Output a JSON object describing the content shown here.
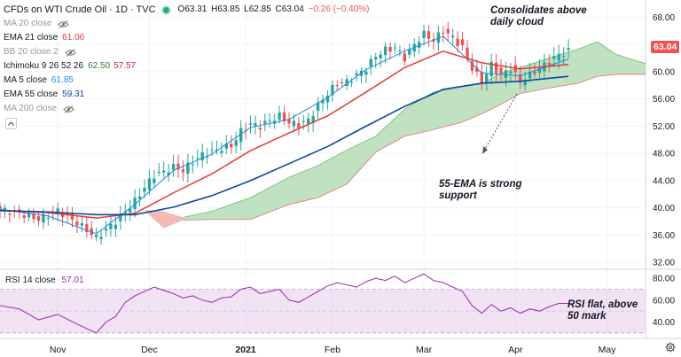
{
  "header": {
    "title": "CFDs on WTI Crude Oil · 1D · TVC",
    "ohlc": {
      "o": "O63.31",
      "h": "H63.85",
      "l": "L62.85",
      "c": "C63.04",
      "chg": "−0.26 (−0.40%)"
    }
  },
  "indicators": [
    {
      "label": "MA 20 close",
      "value": "",
      "hidden": true,
      "color": "#9598a1"
    },
    {
      "label": "EMA 21 close",
      "value": "61.06",
      "hidden": false,
      "color": "#e53935"
    },
    {
      "label": "BB 20 close 2",
      "value": "",
      "hidden": true,
      "color": "#9598a1"
    },
    {
      "label": "Ichimoku 9 26 52 26",
      "value": "62.50",
      "value2": "57.57",
      "hidden": false,
      "color": "#2e7d32",
      "color2": "#c62828"
    },
    {
      "label": "MA 5 close",
      "value": "61.85",
      "hidden": false,
      "color": "#1e88e5"
    },
    {
      "label": "EMA 55 close",
      "value": "59.31",
      "hidden": false,
      "color": "#0d47a1"
    },
    {
      "label": "MA 200 close",
      "value": "",
      "hidden": true,
      "color": "#9598a1"
    }
  ],
  "rsi_legend": {
    "label": "RSI 14 close",
    "value": "57.01",
    "color": "#9c27b0"
  },
  "annotations": {
    "consolidates": "Consolidates above\ndaily cloud",
    "ema55": "55-EMA is strong\nsupport",
    "rsi": "RSI flat, above\n50 mark"
  },
  "last_price": "63.04",
  "colors": {
    "up": "#26a69a",
    "down": "#ef5350",
    "cloud_bull": "#a5d6a7",
    "cloud_bear": "#ef9a9a",
    "rsi": "#9c27b0",
    "rsi_band": "#e1bee7"
  },
  "chart_data": [
    {
      "type": "candlestick",
      "title": "CFDs on WTI Crude Oil · 1D · TVC",
      "x_ticks": [
        "Nov",
        "Dec",
        "2021",
        "Feb",
        "Mar",
        "Apr",
        "May"
      ],
      "y_ticks": [
        32.0,
        36.0,
        40.0,
        44.0,
        48.0,
        52.0,
        56.0,
        60.0,
        64.0,
        68.0
      ],
      "ylim": [
        31.5,
        70.0
      ],
      "grid": true,
      "price_close_path": [
        [
          0,
          39.8
        ],
        [
          4,
          39.2
        ],
        [
          8,
          38.3
        ],
        [
          12,
          39.6
        ],
        [
          16,
          37.8
        ],
        [
          20,
          35.6
        ],
        [
          22,
          36.8
        ],
        [
          24,
          38.0
        ],
        [
          26,
          39.5
        ],
        [
          28,
          41.0
        ],
        [
          30,
          43.0
        ],
        [
          32,
          44.8
        ],
        [
          34,
          45.3
        ],
        [
          36,
          46.0
        ],
        [
          38,
          45.5
        ],
        [
          40,
          46.8
        ],
        [
          42,
          47.8
        ],
        [
          44,
          48.2
        ],
        [
          46,
          48.8
        ],
        [
          48,
          49.1
        ],
        [
          50,
          51.2
        ],
        [
          52,
          52.3
        ],
        [
          54,
          52.0
        ],
        [
          56,
          52.8
        ],
        [
          58,
          53.5
        ],
        [
          60,
          52.5
        ],
        [
          62,
          52.2
        ],
        [
          64,
          52.9
        ],
        [
          66,
          55.0
        ],
        [
          68,
          56.8
        ],
        [
          70,
          58.3
        ],
        [
          72,
          58.5
        ],
        [
          74,
          59.5
        ],
        [
          76,
          60.5
        ],
        [
          78,
          62.3
        ],
        [
          80,
          63.2
        ],
        [
          82,
          63.5
        ],
        [
          84,
          62.0
        ],
        [
          86,
          64.0
        ],
        [
          88,
          65.5
        ],
        [
          90,
          64.6
        ],
        [
          92,
          66.0
        ],
        [
          94,
          65.0
        ],
        [
          96,
          63.5
        ],
        [
          98,
          60.5
        ],
        [
          100,
          58.5
        ],
        [
          102,
          61.0
        ],
        [
          104,
          59.5
        ],
        [
          106,
          60.5
        ],
        [
          108,
          58.5
        ],
        [
          110,
          59.5
        ],
        [
          112,
          60.5
        ],
        [
          114,
          61.5
        ],
        [
          116,
          62.5
        ],
        [
          118,
          63.0
        ]
      ],
      "series": [
        {
          "name": "MA 5 close",
          "points": [
            [
              0,
              39.8
            ],
            [
              10,
              38.8
            ],
            [
              20,
              36.2
            ],
            [
              28,
              40.5
            ],
            [
              36,
              45.5
            ],
            [
              44,
              47.9
            ],
            [
              52,
              51.8
            ],
            [
              60,
              53.0
            ],
            [
              68,
              56.2
            ],
            [
              76,
              60.3
            ],
            [
              84,
              63.0
            ],
            [
              92,
              65.2
            ],
            [
              100,
              59.8
            ],
            [
              108,
              59.4
            ],
            [
              118,
              61.85
            ]
          ]
        },
        {
          "name": "EMA 21 close",
          "points": [
            [
              0,
              39.6
            ],
            [
              10,
              39.3
            ],
            [
              20,
              38.5
            ],
            [
              28,
              39.2
            ],
            [
              36,
              42.2
            ],
            [
              44,
              45.0
            ],
            [
              52,
              48.4
            ],
            [
              60,
              51.0
            ],
            [
              68,
              53.5
            ],
            [
              76,
              57.0
            ],
            [
              84,
              60.6
            ],
            [
              92,
              63.0
            ],
            [
              100,
              61.3
            ],
            [
              108,
              60.4
            ],
            [
              118,
              61.06
            ]
          ]
        },
        {
          "name": "EMA 55 close",
          "points": [
            [
              0,
              39.6
            ],
            [
              10,
              39.4
            ],
            [
              20,
              39.0
            ],
            [
              28,
              39.0
            ],
            [
              36,
              40.1
            ],
            [
              44,
              41.8
            ],
            [
              52,
              44.0
            ],
            [
              60,
              46.5
            ],
            [
              68,
              49.0
            ],
            [
              76,
              52.0
            ],
            [
              84,
              54.9
            ],
            [
              92,
              57.4
            ],
            [
              100,
              58.3
            ],
            [
              108,
              58.6
            ],
            [
              118,
              59.31
            ]
          ]
        }
      ],
      "ichimoku_cloud": {
        "upper": [
          [
            38,
            38.6
          ],
          [
            44,
            39.5
          ],
          [
            52,
            41.5
          ],
          [
            60,
            44.5
          ],
          [
            66,
            46.2
          ],
          [
            72,
            48.5
          ],
          [
            78,
            50.5
          ],
          [
            84,
            54.5
          ],
          [
            90,
            57.0
          ],
          [
            96,
            57.8
          ],
          [
            100,
            58.2
          ],
          [
            104,
            59.8
          ],
          [
            108,
            60.6
          ],
          [
            114,
            62.0
          ],
          [
            120,
            63.3
          ],
          [
            124,
            64.4
          ],
          [
            128,
            62.5
          ],
          [
            134,
            61.2
          ]
        ],
        "lower": [
          [
            38,
            38.2
          ],
          [
            44,
            38.3
          ],
          [
            52,
            38.3
          ],
          [
            60,
            40.5
          ],
          [
            66,
            41.5
          ],
          [
            72,
            43.5
          ],
          [
            78,
            48.2
          ],
          [
            84,
            50.5
          ],
          [
            90,
            51.5
          ],
          [
            96,
            52.6
          ],
          [
            100,
            53.8
          ],
          [
            104,
            55.2
          ],
          [
            108,
            56.8
          ],
          [
            114,
            57.6
          ],
          [
            120,
            58.3
          ],
          [
            124,
            59.3
          ],
          [
            128,
            59.6
          ],
          [
            134,
            59.6
          ]
        ],
        "bear_upper": [
          [
            30,
            39.7
          ],
          [
            34,
            39.5
          ],
          [
            38,
            38.6
          ]
        ],
        "bear_lower": [
          [
            30,
            39.6
          ],
          [
            34,
            37.0
          ],
          [
            38,
            38.2
          ]
        ]
      }
    },
    {
      "type": "line",
      "title": "RSI 14 close",
      "y_ticks": [
        40.0,
        60.0,
        80.0
      ],
      "ylim": [
        25,
        85
      ],
      "band": [
        30,
        70
      ],
      "series": [
        {
          "name": "RSI 14 close",
          "points": [
            [
              0,
              55
            ],
            [
              4,
              52
            ],
            [
              8,
              42
            ],
            [
              12,
              47
            ],
            [
              16,
              38
            ],
            [
              20,
              30
            ],
            [
              22,
              40
            ],
            [
              24,
              45
            ],
            [
              26,
              58
            ],
            [
              28,
              64
            ],
            [
              30,
              68
            ],
            [
              32,
              72
            ],
            [
              34,
              69
            ],
            [
              36,
              66
            ],
            [
              38,
              62
            ],
            [
              40,
              64
            ],
            [
              42,
              60
            ],
            [
              44,
              58
            ],
            [
              46,
              62
            ],
            [
              48,
              63
            ],
            [
              50,
              70
            ],
            [
              52,
              72
            ],
            [
              54,
              66
            ],
            [
              56,
              68
            ],
            [
              58,
              70
            ],
            [
              60,
              60
            ],
            [
              62,
              58
            ],
            [
              64,
              63
            ],
            [
              66,
              68
            ],
            [
              68,
              73
            ],
            [
              70,
              76
            ],
            [
              72,
              74
            ],
            [
              74,
              72
            ],
            [
              76,
              77
            ],
            [
              78,
              80
            ],
            [
              80,
              78
            ],
            [
              82,
              82
            ],
            [
              84,
              76
            ],
            [
              86,
              80
            ],
            [
              88,
              84
            ],
            [
              90,
              78
            ],
            [
              92,
              76
            ],
            [
              94,
              72
            ],
            [
              96,
              68
            ],
            [
              98,
              55
            ],
            [
              100,
              48
            ],
            [
              102,
              56
            ],
            [
              104,
              50
            ],
            [
              106,
              53
            ],
            [
              108,
              48
            ],
            [
              110,
              52
            ],
            [
              112,
              50
            ],
            [
              114,
              54
            ],
            [
              116,
              57
            ],
            [
              118,
              57
            ]
          ]
        }
      ]
    }
  ]
}
